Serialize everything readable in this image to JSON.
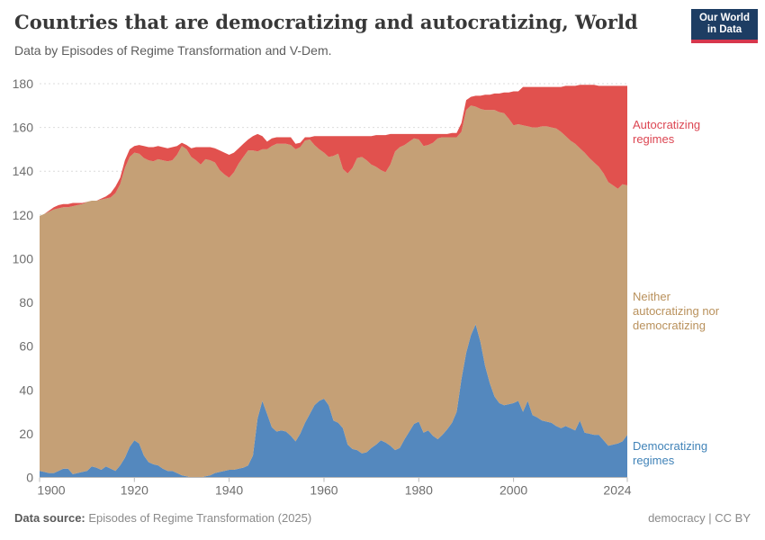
{
  "header": {
    "title": "Countries that are democratizing and autocratizing, World",
    "subtitle": "Data by Episodes of Regime Transformation and V-Dem.",
    "logo": {
      "line1": "Our World",
      "line2": "in Data"
    }
  },
  "footer": {
    "source_label": "Data source:",
    "source_value": "Episodes of Regime Transformation (2025)",
    "right_text": "democracy | CC BY"
  },
  "colors": {
    "democratizing": "#5488be",
    "neither": "#c5a076",
    "autocratizing": "#e1514e",
    "logo_bg": "#1d3d63",
    "logo_bar": "#d7374d"
  },
  "chart_data": {
    "type": "area",
    "stacked": true,
    "title": "Countries that are democratizing and autocratizing, World",
    "xlabel": "",
    "ylabel": "",
    "xlim": [
      1900,
      2024
    ],
    "ylim": [
      0,
      180
    ],
    "x_ticks": [
      1900,
      1920,
      1940,
      1960,
      1980,
      2000,
      2024
    ],
    "y_ticks": [
      0,
      20,
      40,
      60,
      80,
      100,
      120,
      140,
      160,
      180
    ],
    "grid": "horizontal-dashed",
    "legend_position": "right-inline-labels",
    "x": [
      1900,
      1901,
      1902,
      1903,
      1904,
      1905,
      1906,
      1907,
      1908,
      1909,
      1910,
      1911,
      1912,
      1913,
      1914,
      1915,
      1916,
      1917,
      1918,
      1919,
      1920,
      1921,
      1922,
      1923,
      1924,
      1925,
      1926,
      1927,
      1928,
      1929,
      1930,
      1931,
      1932,
      1933,
      1934,
      1935,
      1936,
      1937,
      1938,
      1939,
      1940,
      1941,
      1942,
      1943,
      1944,
      1945,
      1946,
      1947,
      1948,
      1949,
      1950,
      1951,
      1952,
      1953,
      1954,
      1955,
      1956,
      1957,
      1958,
      1959,
      1960,
      1961,
      1962,
      1963,
      1964,
      1965,
      1966,
      1967,
      1968,
      1969,
      1970,
      1971,
      1972,
      1973,
      1974,
      1975,
      1976,
      1977,
      1978,
      1979,
      1980,
      1981,
      1982,
      1983,
      1984,
      1985,
      1986,
      1987,
      1988,
      1989,
      1990,
      1991,
      1992,
      1993,
      1994,
      1995,
      1996,
      1997,
      1998,
      1999,
      2000,
      2001,
      2002,
      2003,
      2004,
      2005,
      2006,
      2007,
      2008,
      2009,
      2010,
      2011,
      2012,
      2013,
      2014,
      2015,
      2016,
      2017,
      2018,
      2019,
      2020,
      2021,
      2022,
      2023,
      2024
    ],
    "series": [
      {
        "id": "democratizing",
        "name": "Democratizing regimes",
        "color": "#5488be",
        "values": [
          3,
          2.5,
          2,
          2,
          3,
          4,
          4,
          1.5,
          2,
          2.5,
          3,
          5,
          4.5,
          3.5,
          5,
          4,
          3,
          5.5,
          9,
          14,
          17,
          15.5,
          10,
          7,
          6,
          5.5,
          4,
          3,
          3,
          2,
          1,
          0.5,
          0,
          0,
          0,
          0.5,
          1,
          2,
          2.5,
          3,
          3.5,
          3.5,
          4,
          4.5,
          5.5,
          10,
          27,
          35,
          29,
          23,
          21,
          21.5,
          21,
          19,
          16.5,
          20,
          25,
          29,
          33,
          35,
          36,
          33,
          26,
          25,
          22.5,
          15,
          13,
          12.5,
          11,
          11.5,
          13.5,
          15,
          17,
          16,
          14.5,
          12.5,
          13.5,
          17.5,
          21,
          24.5,
          25.5,
          20.5,
          21.5,
          19,
          17.5,
          19.5,
          22,
          25,
          30,
          45,
          57,
          65,
          70,
          62,
          51,
          43,
          37,
          34,
          33,
          33.5,
          34,
          35,
          30,
          35,
          28.5,
          27.5,
          26,
          25.5,
          25,
          23.5,
          22.5,
          23.5,
          22.5,
          21.5,
          26,
          20.5,
          20,
          19.5,
          19.5,
          17,
          14.5,
          15,
          15.5,
          16.5,
          19.5
        ]
      },
      {
        "id": "neither",
        "name": "Neither autocratizing nor democratizing",
        "color": "#c5a076",
        "values": [
          116.5,
          118,
          119.5,
          120.5,
          120,
          119.5,
          119.5,
          122.5,
          122.5,
          122.5,
          123,
          121.5,
          122,
          123.5,
          122.5,
          124,
          127,
          128.5,
          132.5,
          132.5,
          131.5,
          132.5,
          136,
          138,
          138.5,
          140,
          141,
          141.5,
          142,
          145.5,
          150.5,
          149.5,
          146.5,
          145,
          143,
          145,
          144,
          142,
          138,
          135.5,
          133.5,
          136,
          139.5,
          142,
          144,
          139.5,
          122,
          115,
          121,
          128.5,
          131.5,
          131,
          131.5,
          133,
          133.5,
          131,
          129,
          125.5,
          119,
          115,
          112.5,
          113.5,
          121,
          123,
          118.5,
          124,
          128.5,
          133.5,
          135.5,
          133.5,
          129.5,
          127,
          123.5,
          123.5,
          128.5,
          136.5,
          137.5,
          134.5,
          132.5,
          130.5,
          129,
          131,
          130.5,
          134,
          137.5,
          136,
          133.5,
          130.5,
          125.5,
          113,
          111,
          105,
          99.5,
          106.5,
          117,
          125,
          131,
          133,
          133.5,
          130.5,
          127,
          126.5,
          131,
          125.5,
          131.5,
          132.5,
          134.5,
          135,
          135,
          136,
          135.5,
          132.5,
          131.5,
          131,
          124.5,
          128,
          126,
          124.5,
          122.5,
          122,
          120.5,
          118.5,
          116.5,
          117.5,
          114
        ]
      },
      {
        "id": "autocratizing",
        "name": "Autocratizing regimes",
        "color": "#e1514e",
        "values": [
          0,
          0,
          0.5,
          1,
          1.5,
          1.5,
          1.5,
          1.5,
          1,
          0.5,
          0,
          0,
          0,
          0.5,
          1,
          2,
          3,
          3,
          3.5,
          3.5,
          3,
          4,
          5.5,
          6,
          6.5,
          6,
          6,
          6,
          6,
          4,
          1.5,
          2,
          4,
          6,
          8,
          5.5,
          6,
          6.5,
          9,
          10,
          10.5,
          9,
          7,
          6,
          5,
          6.5,
          8,
          6,
          3.5,
          3.5,
          3,
          3,
          3,
          3.5,
          2.5,
          2,
          1.5,
          1,
          4,
          6,
          7.5,
          9.5,
          9,
          8,
          15,
          17,
          14.5,
          10,
          9.5,
          11,
          13,
          14.5,
          16,
          17,
          14,
          8,
          6,
          5,
          3.5,
          2,
          2.5,
          5.5,
          5,
          4,
          2,
          1.5,
          1.5,
          2,
          2,
          4,
          4.5,
          4,
          5,
          6,
          7,
          7,
          7.5,
          8.5,
          9.5,
          12,
          15.5,
          15,
          17.5,
          18,
          18.5,
          18.5,
          18,
          18,
          18.5,
          19,
          20.5,
          23,
          25,
          26.5,
          29,
          31,
          33.5,
          35.5,
          37,
          40,
          44,
          45.5,
          47,
          45,
          45.5
        ]
      }
    ]
  }
}
